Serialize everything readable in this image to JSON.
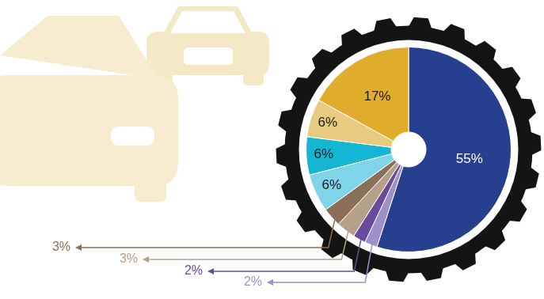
{
  "chart_data": {
    "type": "pie",
    "values": [
      55,
      2,
      2,
      3,
      3,
      6,
      6,
      6,
      17
    ],
    "value_labels": [
      "55%",
      "2%",
      "2%",
      "3%",
      "3%",
      "6%",
      "6%",
      "6%",
      "17%"
    ],
    "colors": [
      "#263f8e",
      "#9e90c8",
      "#6a4a9c",
      "#b5a18a",
      "#8b7057",
      "#7fd4ea",
      "#15b5d4",
      "#e9cb7f",
      "#dfac2c"
    ],
    "data_labels": true
  }
}
